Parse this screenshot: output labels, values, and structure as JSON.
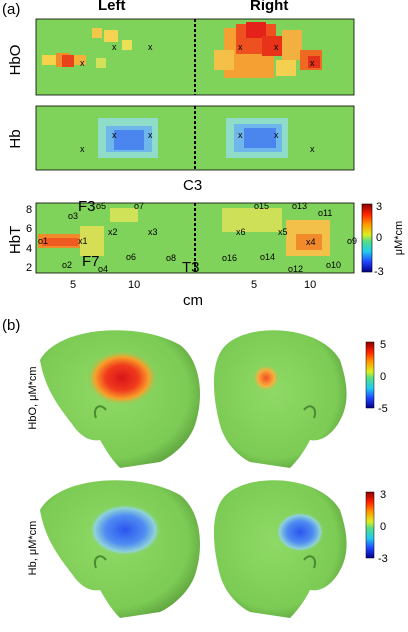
{
  "panel_a": {
    "label": "(a)",
    "left_title": "Left",
    "right_title": "Right",
    "row_labels": [
      "HbO",
      "Hb",
      "HbT"
    ],
    "c3": "C3",
    "x_unit": "cm",
    "yticks": [
      "8",
      "6",
      "4",
      "2"
    ],
    "xticks_left": [
      "5",
      "10"
    ],
    "xticks_right": [
      "5",
      "10"
    ],
    "optodes_left": [
      "o1",
      "o2",
      "o3",
      "o4",
      "o5",
      "o6",
      "o7",
      "o8",
      "x1",
      "x2",
      "x3"
    ],
    "optodes_right": [
      "o9",
      "o10",
      "o11",
      "o12",
      "o13",
      "o14",
      "o15",
      "o16",
      "x4",
      "x5",
      "x6"
    ],
    "landmarks": [
      "F3",
      "F7",
      "T3"
    ],
    "colorbar": {
      "unit": "μM*cm",
      "ticks": [
        "3",
        "0",
        "-3"
      ]
    }
  },
  "panel_b": {
    "label": "(b)",
    "rows": [
      {
        "ylabel": "HbO, μM*cm",
        "ticks": [
          "5",
          "0",
          "-5"
        ]
      },
      {
        "ylabel": "Hb, μM*cm",
        "ticks": [
          "3",
          "0",
          "-3"
        ]
      }
    ]
  },
  "colors": {
    "background_green": "#7fd35a",
    "hot": "#e8311a",
    "cold": "#3b6ff0",
    "skin": "#86d45f"
  }
}
